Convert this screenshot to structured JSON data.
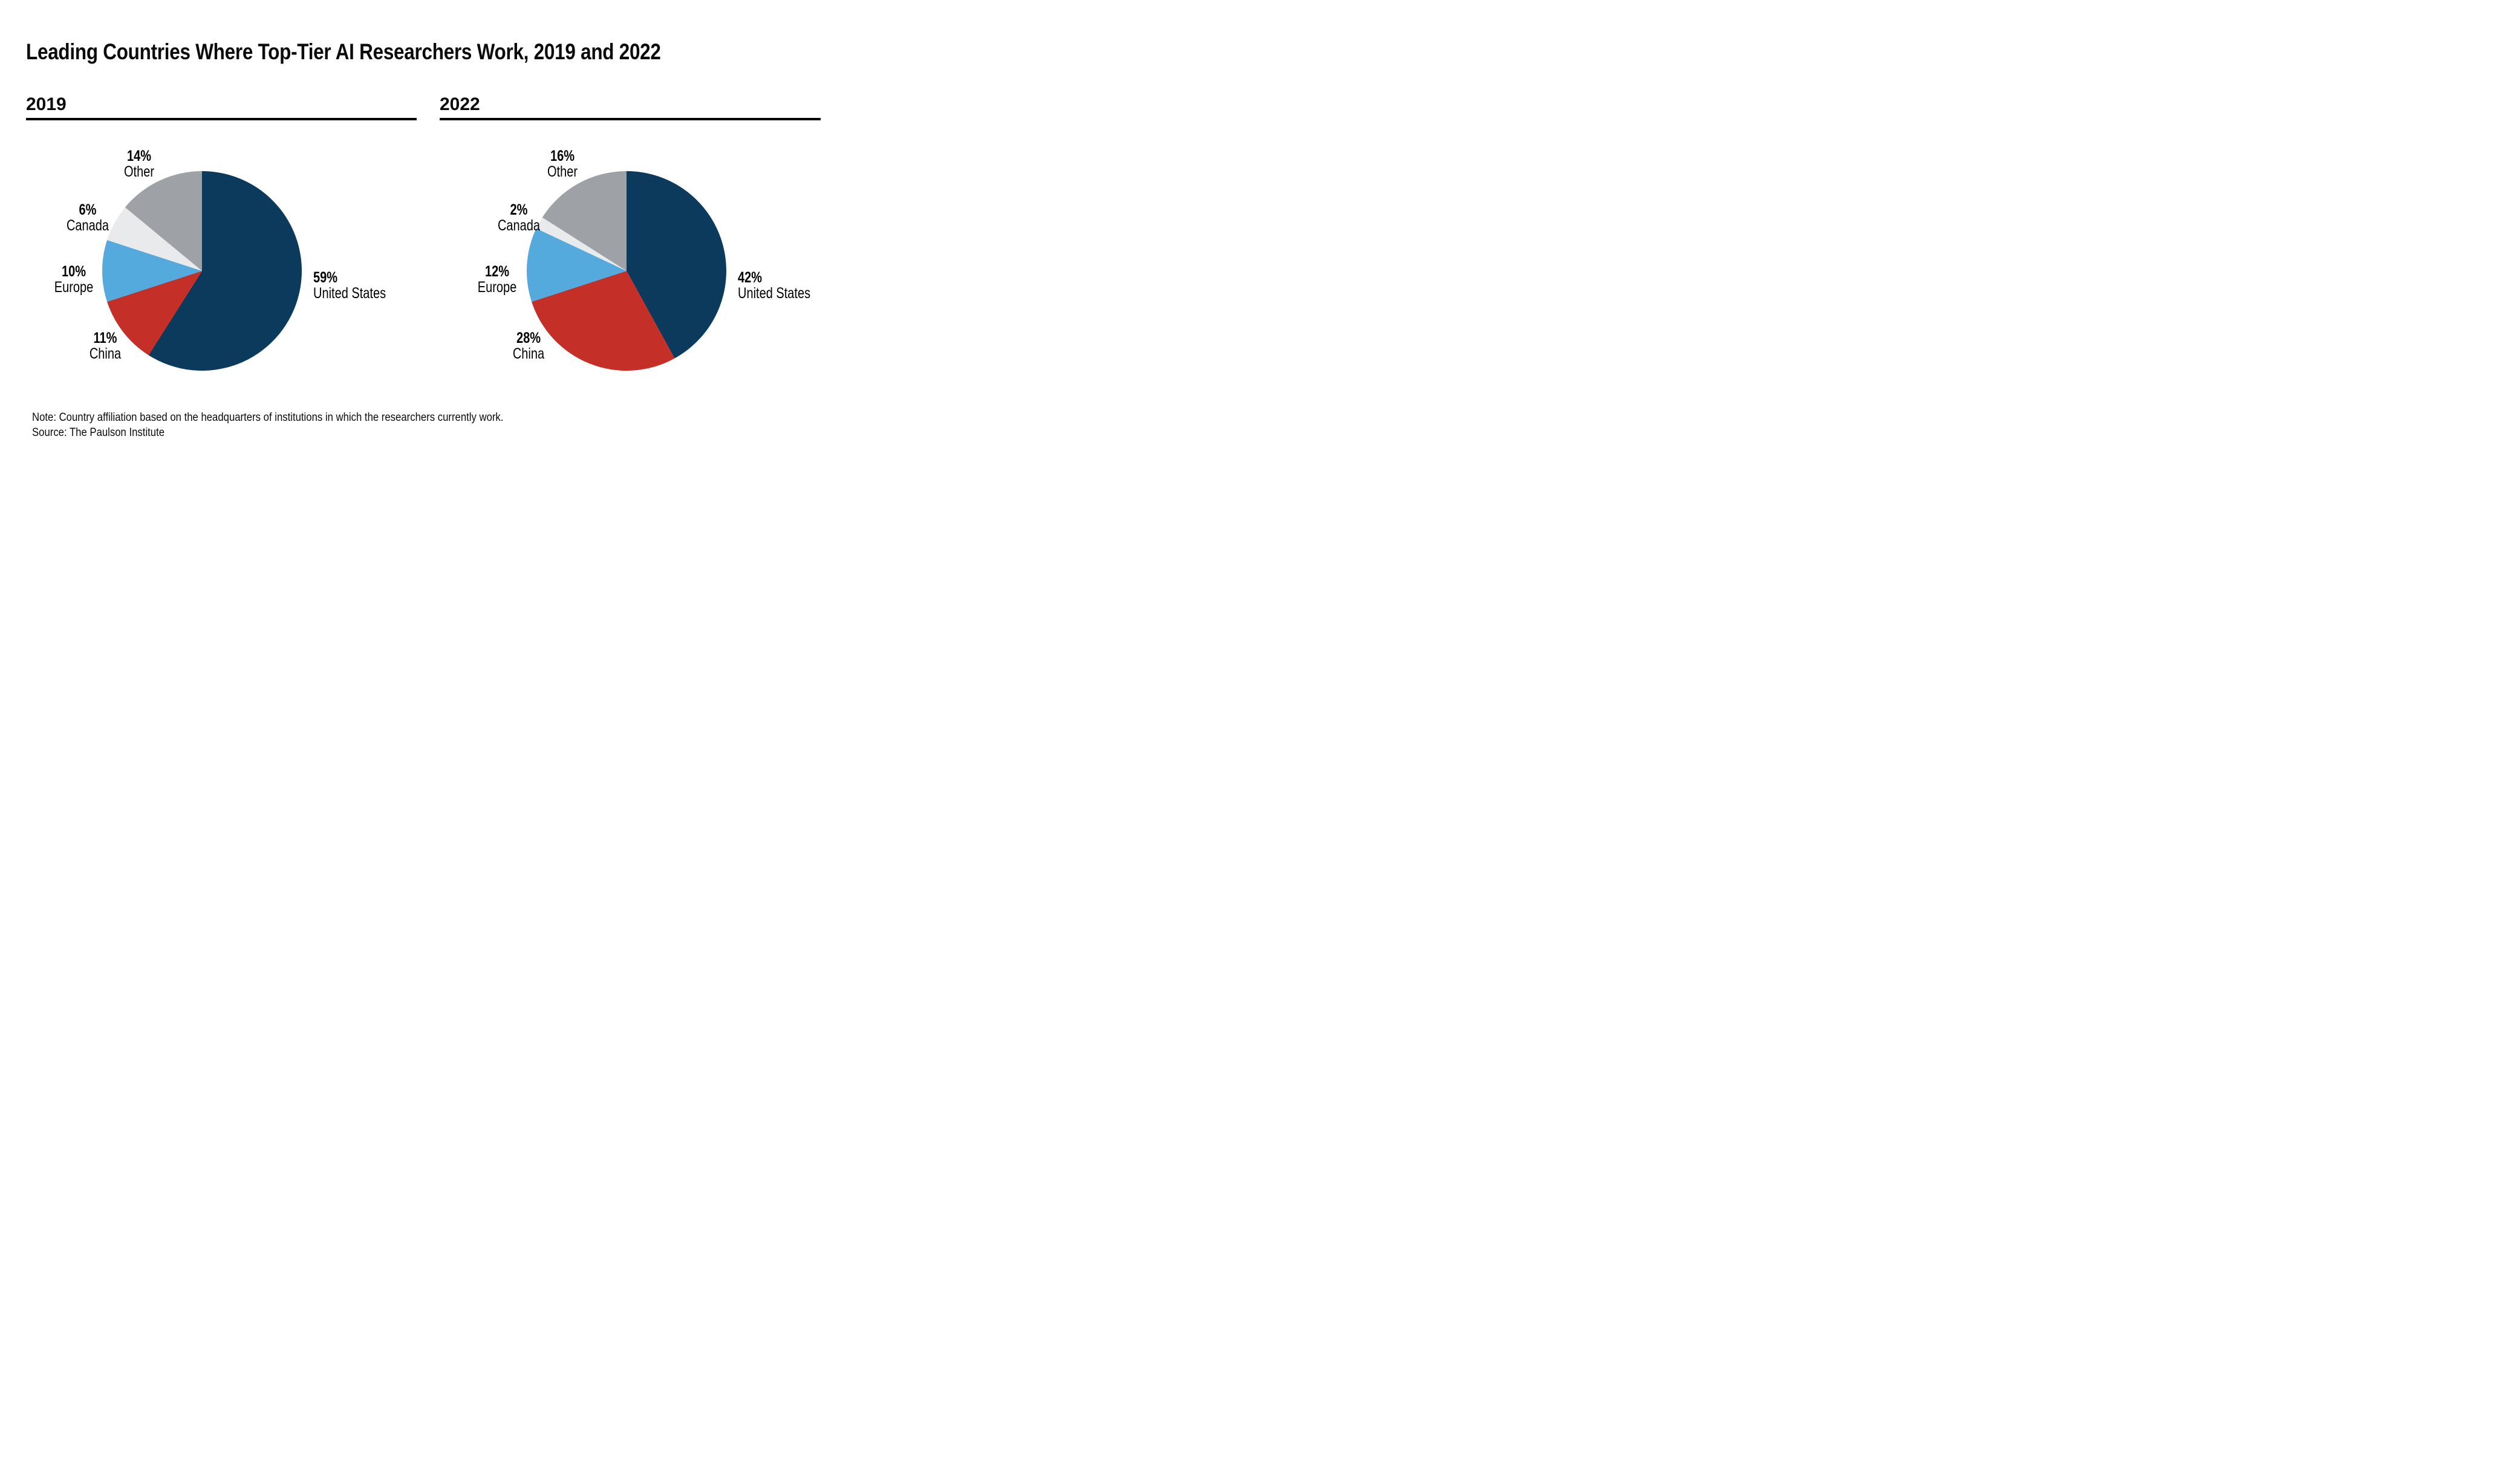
{
  "page": {
    "title": "Leading Countries Where Top-Tier AI Researchers Work, 2019 and 2022",
    "note_line1": "Note: Country affiliation based on the headquarters of institutions in which the researchers currently work.",
    "note_line2": "Source: The Paulson Institute"
  },
  "colors": {
    "united_states": "#0C3A5D",
    "china": "#C43027",
    "europe": "#54AADC",
    "canada": "#E9EAEB",
    "other": "#9EA1A6",
    "text": "#000000",
    "rule": "#000000",
    "background": "#FFFFFF"
  },
  "chart_data": [
    {
      "type": "pie",
      "title": "2019",
      "start_angle_deg": 0,
      "direction": "clockwise-from-top",
      "legend_position": "around-pie",
      "segments": [
        {
          "name": "United States",
          "pct": 59,
          "pct_label": "59%",
          "color_key": "united_states"
        },
        {
          "name": "China",
          "pct": 11,
          "pct_label": "11%",
          "color_key": "china"
        },
        {
          "name": "Europe",
          "pct": 10,
          "pct_label": "10%",
          "color_key": "europe"
        },
        {
          "name": "Canada",
          "pct": 6,
          "pct_label": "6%",
          "color_key": "canada"
        },
        {
          "name": "Other",
          "pct": 14,
          "pct_label": "14%",
          "color_key": "other"
        }
      ]
    },
    {
      "type": "pie",
      "title": "2022",
      "start_angle_deg": 0,
      "direction": "clockwise-from-top",
      "legend_position": "around-pie",
      "segments": [
        {
          "name": "United States",
          "pct": 42,
          "pct_label": "42%",
          "color_key": "united_states"
        },
        {
          "name": "China",
          "pct": 28,
          "pct_label": "28%",
          "color_key": "china"
        },
        {
          "name": "Europe",
          "pct": 12,
          "pct_label": "12%",
          "color_key": "europe"
        },
        {
          "name": "Canada",
          "pct": 2,
          "pct_label": "2%",
          "color_key": "canada"
        },
        {
          "name": "Other",
          "pct": 16,
          "pct_label": "16%",
          "color_key": "other"
        }
      ]
    }
  ]
}
